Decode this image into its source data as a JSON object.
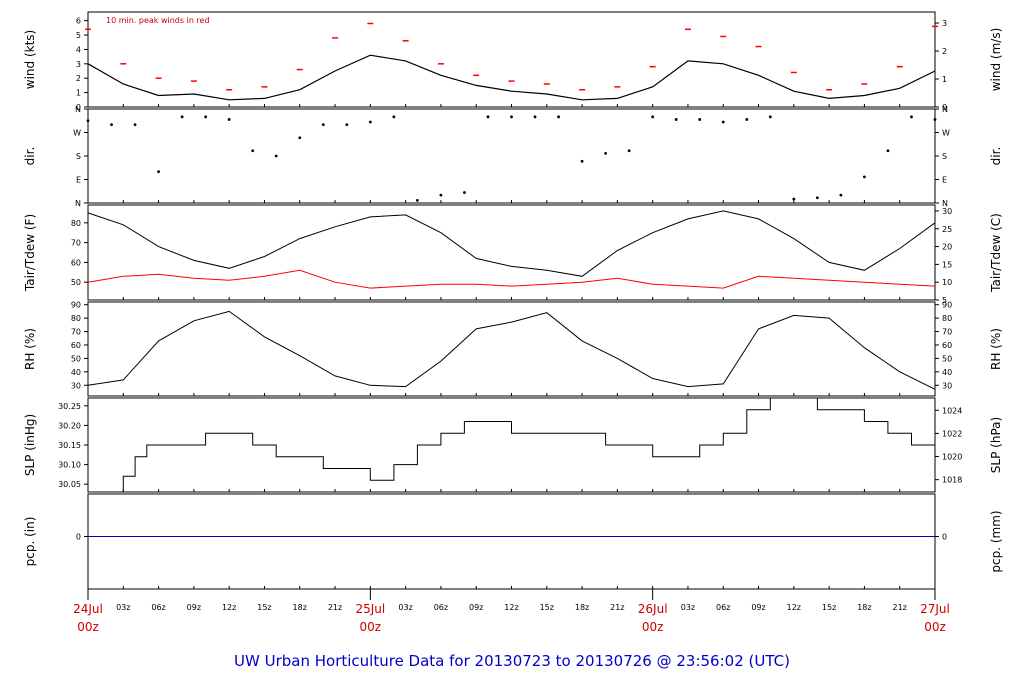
{
  "chart_data": [
    {
      "type": "line",
      "name": "wind",
      "ylabel_left": "wind (kts)",
      "ylabel_right": "wind (m/s)",
      "annotation": "10 min. peak winds in red",
      "ylim": [
        0,
        6.6
      ],
      "yticks_left": [
        "0",
        "1",
        "2",
        "3",
        "4",
        "5",
        "6"
      ],
      "yticks_right": [
        "0",
        "1",
        "2",
        "3"
      ],
      "series": [
        {
          "name": "wind",
          "color": "#000000",
          "x": [
            0,
            3,
            6,
            9,
            12,
            15,
            18,
            21,
            24,
            27,
            30,
            33,
            36,
            39,
            42,
            45,
            48,
            51,
            54,
            57,
            60,
            63,
            66,
            69,
            72
          ],
          "values": [
            3,
            1.6,
            0.8,
            0.9,
            0.5,
            0.6,
            1.2,
            2.5,
            3.6,
            3.2,
            2.2,
            1.5,
            1.1,
            0.9,
            0.5,
            0.6,
            1.4,
            3.2,
            3.0,
            2.2,
            1.1,
            0.6,
            0.8,
            1.3,
            2.5
          ]
        },
        {
          "name": "peak",
          "color": "#ff0000",
          "x": [
            0,
            3,
            6,
            9,
            12,
            15,
            18,
            21,
            24,
            27,
            30,
            33,
            36,
            39,
            42,
            45,
            48,
            51,
            54,
            57,
            60,
            63,
            66,
            69,
            72
          ],
          "values": [
            5.4,
            3.0,
            2.0,
            1.8,
            1.2,
            1.4,
            2.6,
            4.8,
            5.8,
            4.6,
            3.0,
            2.2,
            1.8,
            1.6,
            1.2,
            1.4,
            2.8,
            5.4,
            4.9,
            4.2,
            2.4,
            1.2,
            1.6,
            2.8,
            5.6
          ]
        }
      ]
    },
    {
      "type": "scatter",
      "name": "dir",
      "ylabel_left": "dir.",
      "ylabel_right": "dir.",
      "yticks": [
        "N",
        "E",
        "S",
        "W",
        "N"
      ],
      "ylim": [
        0,
        360
      ],
      "x": [
        0,
        2,
        4,
        6,
        8,
        10,
        12,
        14,
        16,
        18,
        20,
        22,
        24,
        26,
        28,
        30,
        32,
        34,
        36,
        38,
        40,
        42,
        44,
        46,
        48,
        50,
        52,
        54,
        56,
        58,
        60,
        62,
        64,
        66,
        68,
        70,
        72
      ],
      "values": [
        315,
        300,
        300,
        120,
        330,
        330,
        320,
        200,
        180,
        250,
        300,
        300,
        310,
        330,
        10,
        30,
        40,
        330,
        330,
        330,
        330,
        160,
        190,
        200,
        330,
        320,
        320,
        310,
        320,
        330,
        15,
        20,
        30,
        100,
        200,
        330,
        320
      ]
    },
    {
      "type": "line",
      "name": "temp",
      "ylabel_left": "Tair/Tdew (F)",
      "ylabel_right": "Tair/Tdew (C)",
      "ylim_F": [
        41,
        89
      ],
      "yticks_left": [
        "50",
        "60",
        "70",
        "80"
      ],
      "yticks_right": [
        "5",
        "10",
        "15",
        "20",
        "25",
        "30"
      ],
      "series": [
        {
          "name": "Tair",
          "color": "#000000",
          "x": [
            0,
            3,
            6,
            9,
            12,
            15,
            18,
            21,
            24,
            27,
            30,
            33,
            36,
            39,
            42,
            45,
            48,
            51,
            54,
            57,
            60,
            63,
            66,
            69,
            72
          ],
          "values": [
            85,
            79,
            68,
            61,
            57,
            63,
            72,
            78,
            83,
            84,
            75,
            62,
            58,
            56,
            53,
            66,
            75,
            82,
            86,
            82,
            72,
            60,
            56,
            67,
            80
          ]
        },
        {
          "name": "Tdew",
          "color": "#ff0000",
          "x": [
            0,
            3,
            6,
            9,
            12,
            15,
            18,
            21,
            24,
            27,
            30,
            33,
            36,
            39,
            42,
            45,
            48,
            51,
            54,
            57,
            60,
            63,
            66,
            69,
            72
          ],
          "values": [
            50,
            53,
            54,
            52,
            51,
            53,
            56,
            50,
            47,
            48,
            49,
            49,
            48,
            49,
            50,
            52,
            49,
            48,
            47,
            53,
            52,
            51,
            50,
            49,
            48
          ]
        }
      ]
    },
    {
      "type": "line",
      "name": "rh",
      "ylabel_left": "RH (%)",
      "ylabel_right": "RH (%)",
      "ylim": [
        22,
        92
      ],
      "yticks_left": [
        "30",
        "40",
        "50",
        "60",
        "70",
        "80",
        "90"
      ],
      "yticks_right": [
        "30",
        "40",
        "50",
        "60",
        "70",
        "80",
        "90"
      ],
      "series": [
        {
          "name": "RH",
          "color": "#000000",
          "x": [
            0,
            3,
            6,
            9,
            12,
            15,
            18,
            21,
            24,
            27,
            30,
            33,
            36,
            39,
            42,
            45,
            48,
            51,
            54,
            57,
            60,
            63,
            66,
            69,
            72
          ],
          "values": [
            30,
            34,
            63,
            78,
            85,
            66,
            52,
            37,
            30,
            29,
            48,
            72,
            77,
            84,
            63,
            50,
            35,
            29,
            31,
            72,
            82,
            80,
            58,
            40,
            27
          ]
        }
      ]
    },
    {
      "type": "line",
      "name": "slp",
      "ylabel_left": "SLP (inHg)",
      "ylabel_right": "SLP (hPa)",
      "ylim": [
        30.03,
        30.27
      ],
      "yticks_left": [
        "30.05",
        "30.10",
        "30.15",
        "30.20",
        "30.25"
      ],
      "yticks_right": [
        "1018",
        "1020",
        "1022",
        "1024"
      ],
      "series": [
        {
          "name": "SLP",
          "color": "#000000",
          "x": [
            0,
            3,
            4,
            5,
            6,
            10,
            14,
            16,
            20,
            24,
            26,
            28,
            30,
            32,
            36,
            40,
            44,
            48,
            52,
            54,
            56,
            58,
            60,
            62,
            66,
            68,
            70,
            72
          ],
          "values": [
            30.03,
            30.07,
            30.12,
            30.15,
            30.15,
            30.18,
            30.15,
            30.12,
            30.09,
            30.06,
            30.1,
            30.15,
            30.18,
            30.21,
            30.18,
            30.18,
            30.15,
            30.12,
            30.15,
            30.18,
            30.24,
            30.27,
            30.27,
            30.24,
            30.21,
            30.18,
            30.15,
            30.18
          ]
        }
      ]
    },
    {
      "type": "line",
      "name": "pcp",
      "ylabel_left": "pcp. (in)",
      "ylabel_right": "pcp. (mm)",
      "ytick_left": "0",
      "ytick_right": "0",
      "series": [
        {
          "name": "pcp",
          "color": "#0000cc",
          "x": [
            0,
            72
          ],
          "values": [
            0,
            0
          ]
        }
      ]
    }
  ],
  "x_axis": {
    "hour_labels": [
      "03z",
      "06z",
      "09z",
      "12z",
      "15z",
      "18z",
      "21z",
      "03z",
      "06z",
      "09z",
      "12z",
      "15z",
      "18z",
      "21z",
      "03z",
      "06z",
      "09z",
      "12z",
      "15z",
      "18z",
      "21z"
    ],
    "hour_positions": [
      3,
      6,
      9,
      12,
      15,
      18,
      21,
      27,
      30,
      33,
      36,
      39,
      42,
      45,
      51,
      54,
      57,
      60,
      63,
      66,
      69
    ],
    "day_labels": [
      {
        "date": "24Jul",
        "time": "00z",
        "hour": 0
      },
      {
        "date": "25Jul",
        "time": "00z",
        "hour": 24
      },
      {
        "date": "26Jul",
        "time": "00z",
        "hour": 48
      },
      {
        "date": "27Jul",
        "time": "00z",
        "hour": 72
      }
    ]
  },
  "footer": "UW Urban Horticulture Data for 20130723  to  20130726 @ 23:56:02  (UTC)",
  "colors": {
    "day_label": "#cc0000",
    "footer": "#0000cc",
    "peak": "#ff0000",
    "dew": "#ff0000",
    "pcp": "#0000cc"
  }
}
